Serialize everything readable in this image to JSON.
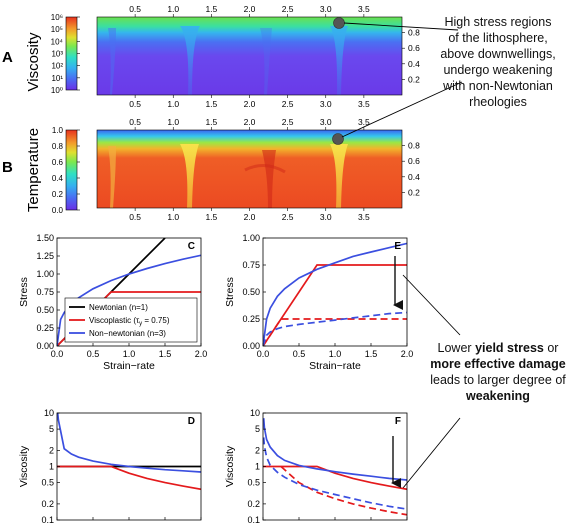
{
  "colors": {
    "black": "#000000",
    "red": "#e41a1c",
    "blue": "#3b4fe0",
    "arrow": "#222222"
  },
  "colormap": [
    "#6a2fe6",
    "#5f4cf0",
    "#4a73f2",
    "#3d9cf0",
    "#33c4ee",
    "#2fe3c6",
    "#5fe86a",
    "#b5e83a",
    "#f0d52a",
    "#f3902a",
    "#ee5a24",
    "#e8351f"
  ],
  "annotations": {
    "top": [
      "High stress regions",
      "of the lithosphere,",
      "above downwellings,",
      "undergo weakening",
      "with non-Newtonian",
      "rheologies"
    ],
    "bottom": [
      [
        {
          "t": "Lower ",
          "b": false
        },
        {
          "t": "yield stress",
          "b": true
        },
        {
          "t": " or",
          "b": false
        }
      ],
      [
        {
          "t": "more effective damage",
          "b": true
        }
      ],
      [
        {
          "t": "leads to larger degree of",
          "b": false
        }
      ],
      [
        {
          "t": "weakening",
          "b": true
        }
      ]
    ]
  },
  "panel_a": {
    "letter": "A",
    "ylabel": "Viscosity",
    "colorbar_ticks": [
      "10⁰",
      "10¹",
      "10²",
      "10³",
      "10⁴",
      "10⁵",
      "10⁶"
    ],
    "x_ticks": [
      "0.5",
      "1.0",
      "1.5",
      "2.0",
      "2.5",
      "3.0",
      "3.5"
    ],
    "y_ticks": [
      "0.2",
      "0.4",
      "0.6",
      "0.8"
    ]
  },
  "panel_b": {
    "letter": "B",
    "ylabel": "Temperature",
    "colorbar_ticks": [
      "0.0",
      "0.2",
      "0.4",
      "0.6",
      "0.8",
      "1.0"
    ],
    "x_ticks": [
      "0.5",
      "1.0",
      "1.5",
      "2.0",
      "2.5",
      "3.0",
      "3.5"
    ],
    "y_ticks": [
      "0.2",
      "0.4",
      "0.6",
      "0.8"
    ]
  },
  "chart_data": [
    {
      "panel": "C",
      "type": "line",
      "xlabel": "Strain−rate",
      "ylabel": "Stress",
      "xlim": [
        0,
        2
      ],
      "ylim": [
        0,
        1.5
      ],
      "x_ticks": [
        "0.0",
        "0.5",
        "1.0",
        "1.5",
        "2.0"
      ],
      "y_ticks": [
        "0.00",
        "0.25",
        "0.50",
        "0.75",
        "1.00",
        "1.25",
        "1.50"
      ],
      "legend": [
        "Newtonian (n=1)",
        "Viscoplastic (τ",
        "y",
        " = 0.75)",
        "Non−newtonian (n=3)"
      ],
      "series": [
        {
          "name": "Newtonian (n=1)",
          "color": "black",
          "x": [
            0,
            1.5
          ],
          "y": [
            0,
            1.5
          ]
        },
        {
          "name": "Viscoplastic (τy = 0.75)",
          "color": "red",
          "x": [
            0,
            0.75,
            2.0
          ],
          "y": [
            0,
            0.75,
            0.75
          ]
        },
        {
          "name": "Non−newtonian (n=3)",
          "color": "blue",
          "x": [
            0,
            0.05,
            0.1,
            0.2,
            0.3,
            0.5,
            0.75,
            1.0,
            1.25,
            1.5,
            1.75,
            2.0
          ],
          "y": [
            0,
            0.368,
            0.464,
            0.585,
            0.669,
            0.794,
            0.909,
            1.0,
            1.077,
            1.145,
            1.205,
            1.26
          ]
        }
      ]
    },
    {
      "panel": "D",
      "type": "line",
      "xlabel": "Strain−rate",
      "ylabel": "Viscosity",
      "scale": "log",
      "xlim": [
        0,
        2
      ],
      "ylim": [
        0.1,
        10
      ],
      "x_ticks": [
        "0.0",
        "0.5",
        "1.0",
        "1.5",
        "2.0"
      ],
      "y_ticks": [
        "0.1",
        "0.2",
        "0.5",
        "1",
        "2",
        "5",
        "10"
      ],
      "series": [
        {
          "color": "black",
          "x": [
            0,
            2
          ],
          "y": [
            1,
            1
          ]
        },
        {
          "color": "red",
          "x": [
            0,
            0.75,
            1.0,
            1.25,
            1.5,
            1.75,
            2.0
          ],
          "y": [
            1,
            1,
            0.75,
            0.6,
            0.5,
            0.43,
            0.375
          ]
        },
        {
          "color": "blue",
          "x": [
            0.01,
            0.02,
            0.05,
            0.1,
            0.2,
            0.3,
            0.5,
            0.75,
            1.0,
            1.25,
            1.5,
            1.75,
            2.0
          ],
          "y": [
            10,
            7.37,
            4.64,
            2.15,
            1.71,
            1.49,
            1.26,
            1.1,
            1.0,
            0.93,
            0.87,
            0.83,
            0.79
          ]
        }
      ]
    },
    {
      "panel": "E",
      "type": "line",
      "xlabel": "Strain−rate",
      "ylabel": "Stress",
      "xlim": [
        0,
        2
      ],
      "ylim": [
        0,
        1
      ],
      "x_ticks": [
        "0.0",
        "0.5",
        "1.0",
        "1.5",
        "2.0"
      ],
      "y_ticks": [
        "0.00",
        "0.25",
        "0.50",
        "0.75",
        "1.00"
      ],
      "series": [
        {
          "color": "red",
          "dash": false,
          "x": [
            0,
            0.75,
            2.0
          ],
          "y": [
            0,
            0.75,
            0.75
          ]
        },
        {
          "color": "red",
          "dash": true,
          "x": [
            0,
            0.25,
            2.0
          ],
          "y": [
            0,
            0.25,
            0.25
          ]
        },
        {
          "color": "blue",
          "dash": false,
          "x": [
            0,
            0.05,
            0.1,
            0.2,
            0.3,
            0.5,
            0.75,
            1.0,
            1.25,
            1.5,
            1.75,
            2.0
          ],
          "y": [
            0,
            0.25,
            0.35,
            0.46,
            0.53,
            0.63,
            0.71,
            0.77,
            0.83,
            0.87,
            0.91,
            0.95
          ]
        },
        {
          "color": "blue",
          "dash": true,
          "x": [
            0,
            0.05,
            0.1,
            0.2,
            0.3,
            0.5,
            0.75,
            1.0,
            1.25,
            1.5,
            1.75,
            2.0
          ],
          "y": [
            0,
            0.1,
            0.13,
            0.16,
            0.18,
            0.2,
            0.22,
            0.24,
            0.26,
            0.28,
            0.3,
            0.31
          ]
        }
      ]
    },
    {
      "panel": "F",
      "type": "line",
      "xlabel": "Strain−rate",
      "ylabel": "Viscosity",
      "scale": "log",
      "xlim": [
        0,
        2
      ],
      "ylim": [
        0.1,
        10
      ],
      "x_ticks": [
        "0.0",
        "0.5",
        "1.0",
        "1.5",
        "2.0"
      ],
      "y_ticks": [
        "0.1",
        "0.2",
        "0.5",
        "1",
        "2",
        "5",
        "10"
      ],
      "series": [
        {
          "color": "red",
          "dash": false,
          "x": [
            0,
            0.75,
            1.0,
            1.25,
            1.5,
            1.75,
            2.0
          ],
          "y": [
            1,
            1,
            0.75,
            0.6,
            0.5,
            0.43,
            0.375
          ]
        },
        {
          "color": "red",
          "dash": true,
          "x": [
            0.25,
            0.5,
            0.75,
            1.0,
            1.25,
            1.5,
            1.75,
            2.0
          ],
          "y": [
            1,
            0.5,
            0.33,
            0.25,
            0.2,
            0.167,
            0.143,
            0.125
          ]
        },
        {
          "color": "blue",
          "dash": false,
          "x": [
            0.01,
            0.02,
            0.05,
            0.1,
            0.2,
            0.3,
            0.5,
            0.75,
            1.0,
            1.25,
            1.5,
            1.75,
            2.0
          ],
          "y": [
            8,
            5.3,
            3.2,
            2.3,
            1.6,
            1.3,
            1.05,
            0.9,
            0.8,
            0.72,
            0.66,
            0.6,
            0.56
          ]
        },
        {
          "color": "blue",
          "dash": true,
          "x": [
            0.01,
            0.02,
            0.05,
            0.1,
            0.2,
            0.3,
            0.5,
            0.75,
            1.0,
            1.25,
            1.5,
            1.75,
            2.0
          ],
          "y": [
            3.5,
            2.4,
            1.5,
            1.05,
            0.78,
            0.63,
            0.46,
            0.36,
            0.3,
            0.25,
            0.21,
            0.18,
            0.16
          ]
        }
      ]
    }
  ]
}
